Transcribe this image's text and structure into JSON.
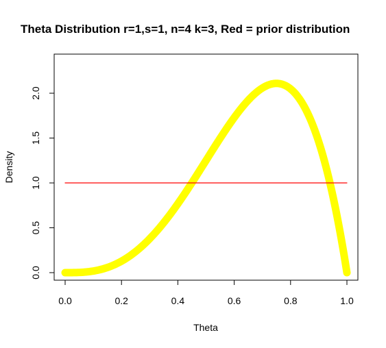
{
  "chart_data": {
    "type": "line",
    "title": "Theta Distribution r=1,s=1, n=4 k=3, Red = prior distribution",
    "xlabel": "Theta",
    "ylabel": "Density",
    "xlim": [
      0,
      1
    ],
    "ylim": [
      0,
      2.344
    ],
    "x_ticks": [
      "0.0",
      "0.2",
      "0.4",
      "0.6",
      "0.8",
      "1.0"
    ],
    "y_ticks": [
      "0.0",
      "0.5",
      "1.0",
      "1.5",
      "2.0"
    ],
    "grid": false,
    "series": [
      {
        "color": "#ffff00",
        "distribution": "Beta(4,2)",
        "x": [
          0.0,
          0.05,
          0.1,
          0.15,
          0.2,
          0.25,
          0.3,
          0.35,
          0.4,
          0.45,
          0.5,
          0.55,
          0.6,
          0.65,
          0.7,
          0.75,
          0.8,
          0.85,
          0.9,
          0.95,
          1.0
        ],
        "y": [
          0.0,
          0.0024,
          0.018,
          0.0574,
          0.128,
          0.2344,
          0.378,
          0.5574,
          0.768,
          1.0024,
          1.25,
          1.4974,
          1.728,
          1.9224,
          2.058,
          2.1094,
          2.048,
          1.8424,
          1.458,
          0.8574,
          0.0
        ]
      },
      {
        "color": "#ff0000",
        "distribution": "Beta(1,1)",
        "x": [
          0.0,
          1.0
        ],
        "y": [
          1.0,
          1.0
        ]
      }
    ]
  }
}
